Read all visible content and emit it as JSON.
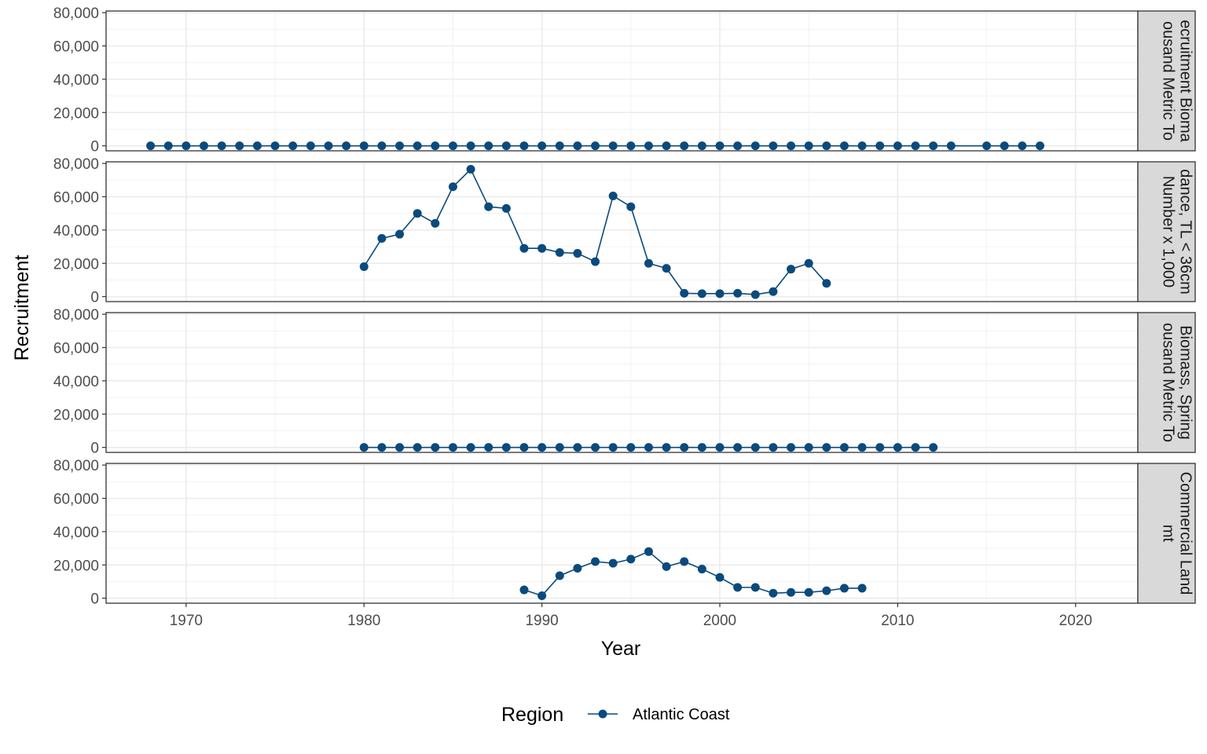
{
  "chart_data": {
    "type": "line",
    "xlabel": "Year",
    "ylabel": "Recruitment",
    "xlim": [
      1965.5,
      2023.5
    ],
    "ylim": [
      -3000,
      81000
    ],
    "x_ticks": [
      1970,
      1980,
      1990,
      2000,
      2010,
      2020
    ],
    "x_tick_labels": [
      "1970",
      "1980",
      "1990",
      "2000",
      "2010",
      "2020"
    ],
    "y_ticks": [
      0,
      20000,
      40000,
      60000,
      80000
    ],
    "y_tick_labels": [
      "0",
      "20,000",
      "40,000",
      "60,000",
      "80,000"
    ],
    "legend": {
      "title": "Region",
      "position": "bottom",
      "entries": [
        {
          "label": "Atlantic Coast",
          "color": "#0b4a7c"
        }
      ]
    },
    "series_color": "#0b4a7c",
    "panels": [
      {
        "strip_lines": [
          "ecruitment Bioma",
          "ousand Metric To"
        ],
        "points": [
          [
            1968,
            0
          ],
          [
            1969,
            0
          ],
          [
            1970,
            0
          ],
          [
            1971,
            0
          ],
          [
            1972,
            0
          ],
          [
            1973,
            0
          ],
          [
            1974,
            0
          ],
          [
            1975,
            0
          ],
          [
            1976,
            0
          ],
          [
            1977,
            0
          ],
          [
            1978,
            0
          ],
          [
            1979,
            0
          ],
          [
            1980,
            0
          ],
          [
            1981,
            0
          ],
          [
            1982,
            0
          ],
          [
            1983,
            0
          ],
          [
            1984,
            0
          ],
          [
            1985,
            0
          ],
          [
            1986,
            0
          ],
          [
            1987,
            0
          ],
          [
            1988,
            0
          ],
          [
            1989,
            0
          ],
          [
            1990,
            0
          ],
          [
            1991,
            0
          ],
          [
            1992,
            0
          ],
          [
            1993,
            0
          ],
          [
            1994,
            0
          ],
          [
            1995,
            0
          ],
          [
            1996,
            0
          ],
          [
            1997,
            0
          ],
          [
            1998,
            0
          ],
          [
            1999,
            0
          ],
          [
            2000,
            0
          ],
          [
            2001,
            0
          ],
          [
            2002,
            0
          ],
          [
            2003,
            0
          ],
          [
            2004,
            0
          ],
          [
            2005,
            0
          ],
          [
            2006,
            0
          ],
          [
            2007,
            0
          ],
          [
            2008,
            0
          ],
          [
            2009,
            0
          ],
          [
            2010,
            0
          ],
          [
            2011,
            0
          ],
          [
            2012,
            0
          ],
          [
            2013,
            0
          ],
          [
            2015,
            0
          ],
          [
            2016,
            0
          ],
          [
            2017,
            0
          ],
          [
            2018,
            0
          ]
        ]
      },
      {
        "strip_lines": [
          "dance, TL < 36cm",
          "Number x 1,000"
        ],
        "points": [
          [
            1980,
            18000
          ],
          [
            1981,
            35000
          ],
          [
            1982,
            37500
          ],
          [
            1983,
            50000
          ],
          [
            1984,
            44000
          ],
          [
            1985,
            66000
          ],
          [
            1986,
            76500
          ],
          [
            1987,
            54000
          ],
          [
            1988,
            53000
          ],
          [
            1989,
            29000
          ],
          [
            1990,
            29000
          ],
          [
            1991,
            26500
          ],
          [
            1992,
            26000
          ],
          [
            1993,
            21000
          ],
          [
            1994,
            60500
          ],
          [
            1995,
            54000
          ],
          [
            1996,
            20000
          ],
          [
            1997,
            17000
          ],
          [
            1998,
            2000
          ],
          [
            1999,
            1800
          ],
          [
            2000,
            1800
          ],
          [
            2001,
            2000
          ],
          [
            2002,
            1200
          ],
          [
            2003,
            3000
          ],
          [
            2004,
            16500
          ],
          [
            2005,
            20000
          ],
          [
            2006,
            8000
          ]
        ]
      },
      {
        "strip_lines": [
          "Biomass, Spring",
          "ousand Metric To"
        ],
        "points": [
          [
            1980,
            0
          ],
          [
            1981,
            0
          ],
          [
            1982,
            0
          ],
          [
            1983,
            0
          ],
          [
            1984,
            0
          ],
          [
            1985,
            0
          ],
          [
            1986,
            0
          ],
          [
            1987,
            0
          ],
          [
            1988,
            0
          ],
          [
            1989,
            0
          ],
          [
            1990,
            0
          ],
          [
            1991,
            0
          ],
          [
            1992,
            0
          ],
          [
            1993,
            0
          ],
          [
            1994,
            0
          ],
          [
            1995,
            0
          ],
          [
            1996,
            0
          ],
          [
            1997,
            0
          ],
          [
            1998,
            0
          ],
          [
            1999,
            0
          ],
          [
            2000,
            0
          ],
          [
            2001,
            0
          ],
          [
            2002,
            0
          ],
          [
            2003,
            0
          ],
          [
            2004,
            0
          ],
          [
            2005,
            0
          ],
          [
            2006,
            0
          ],
          [
            2007,
            0
          ],
          [
            2008,
            0
          ],
          [
            2009,
            0
          ],
          [
            2010,
            0
          ],
          [
            2011,
            0
          ],
          [
            2012,
            0
          ]
        ]
      },
      {
        "strip_lines": [
          "Commercial Land",
          "mt"
        ],
        "points": [
          [
            1989,
            5000
          ],
          [
            1990,
            1500
          ],
          [
            1991,
            13500
          ],
          [
            1992,
            18000
          ],
          [
            1993,
            22000
          ],
          [
            1994,
            21000
          ],
          [
            1995,
            23500
          ],
          [
            1996,
            28000
          ],
          [
            1997,
            19000
          ],
          [
            1998,
            22000
          ],
          [
            1999,
            17500
          ],
          [
            2000,
            12500
          ],
          [
            2001,
            6500
          ],
          [
            2002,
            6500
          ],
          [
            2003,
            3000
          ],
          [
            2004,
            3500
          ],
          [
            2005,
            3500
          ],
          [
            2006,
            4500
          ],
          [
            2007,
            6000
          ],
          [
            2008,
            6000
          ]
        ]
      }
    ]
  }
}
